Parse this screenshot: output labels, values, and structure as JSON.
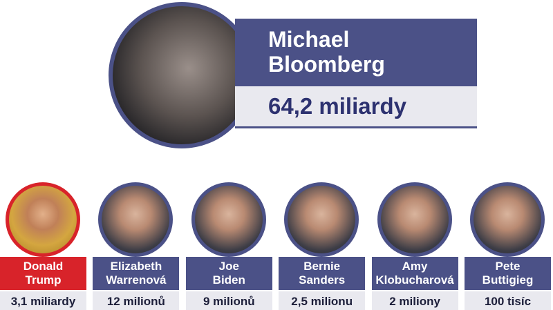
{
  "featured": {
    "name_lines": [
      "Michael",
      "Bloomberg"
    ],
    "amount": "64,2 miliardy"
  },
  "candidates": [
    {
      "name_lines": [
        "Donald",
        "Trump"
      ],
      "amount": "3,1 miliardy"
    },
    {
      "name_lines": [
        "Elizabeth",
        "Warrenová"
      ],
      "amount": "12 milionů"
    },
    {
      "name_lines": [
        "Joe",
        "Biden"
      ],
      "amount": "9 milionů"
    },
    {
      "name_lines": [
        "Bernie",
        "Sanders"
      ],
      "amount": "2,5 milionu"
    },
    {
      "name_lines": [
        "Amy",
        "Klobucharová"
      ],
      "amount": "2 miliony"
    },
    {
      "name_lines": [
        "Pete",
        "Buttigieg"
      ],
      "amount": "100 tisíc"
    }
  ]
}
